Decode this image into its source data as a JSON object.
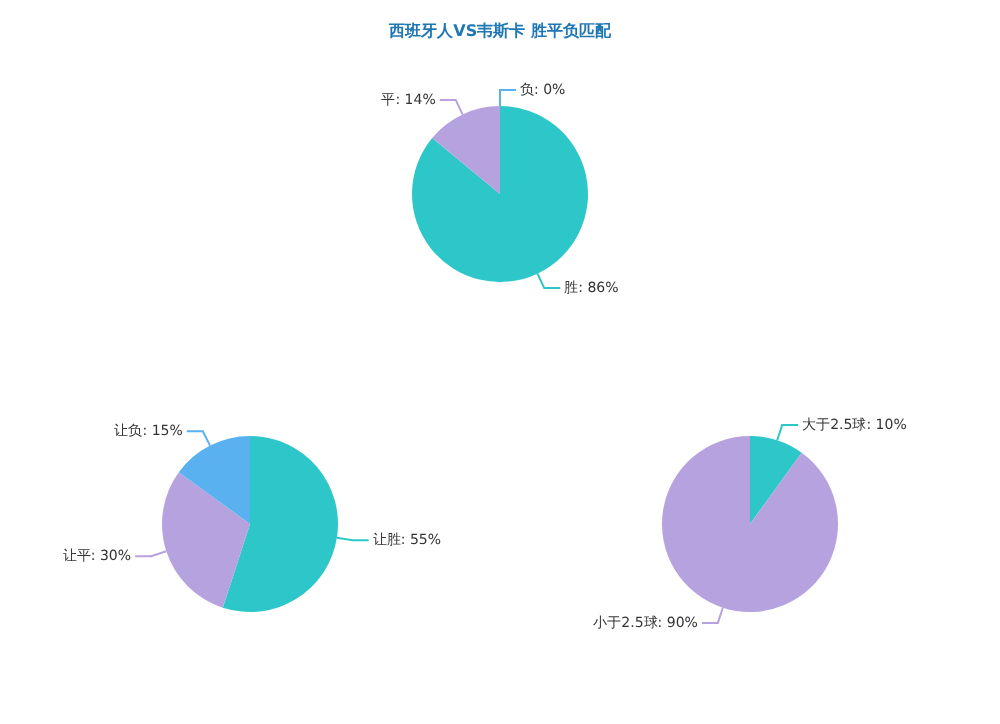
{
  "chart_data": [
    {
      "type": "pie",
      "title": "西班牙人VS韦斯卡 胜平负匹配",
      "categories": [
        "胜",
        "平",
        "负"
      ],
      "values": [
        86,
        14,
        0
      ],
      "colors": [
        "#2ec7c9",
        "#b6a2de",
        "#5ab1ef"
      ],
      "value_labels": [
        "86%",
        "14%",
        "0%"
      ]
    },
    {
      "type": "pie",
      "categories": [
        "让胜",
        "让平",
        "让负"
      ],
      "values": [
        55,
        30,
        15
      ],
      "colors": [
        "#2ec7c9",
        "#b6a2de",
        "#5ab1ef"
      ],
      "value_labels": [
        "55%",
        "30%",
        "15%"
      ]
    },
    {
      "type": "pie",
      "categories": [
        "大于2.5球",
        "小于2.5球"
      ],
      "values": [
        10,
        90
      ],
      "colors": [
        "#2ec7c9",
        "#b6a2de"
      ],
      "value_labels": [
        "10%",
        "90%"
      ]
    }
  ]
}
